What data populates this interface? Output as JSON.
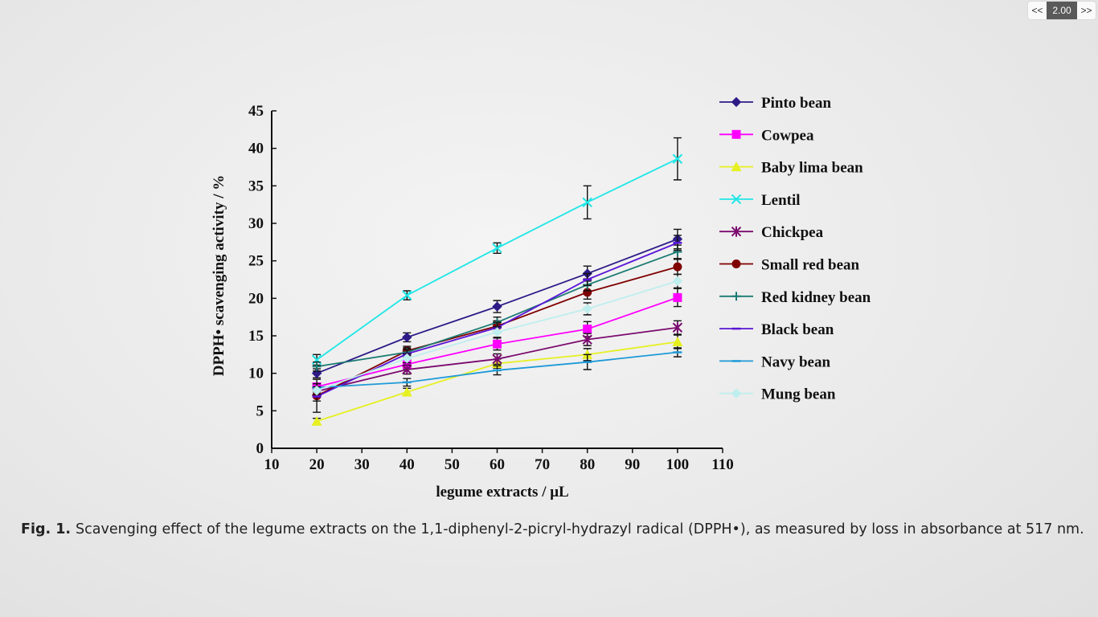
{
  "player": {
    "prev_label": "<<",
    "speed": "2.00",
    "next_label": ">>"
  },
  "caption": {
    "label": "Fig. 1.",
    "text": "Scavenging effect of the legume extracts on the 1,1-diphenyl-2-picryl-hydrazyl radical (DPPH•), as measured by loss in absorbance at 517 nm."
  },
  "chart_data": {
    "type": "line",
    "xlabel": "legume extracts / μL",
    "ylabel": "DPPH• scavenging activity / %",
    "xlim": [
      10,
      110
    ],
    "ylim": [
      0,
      45
    ],
    "xticks": [
      10,
      20,
      30,
      40,
      50,
      60,
      70,
      80,
      90,
      100,
      110
    ],
    "yticks": [
      0,
      5,
      10,
      15,
      20,
      25,
      30,
      35,
      40,
      45
    ],
    "grid": false,
    "legend_position": "right",
    "x": [
      20,
      40,
      60,
      80,
      100
    ],
    "series": [
      {
        "name": "Pinto bean",
        "color": "#2e1a87",
        "marker": "diamond",
        "values": [
          10.0,
          14.8,
          18.9,
          23.3,
          27.9
        ],
        "errors": [
          0.6,
          0.6,
          0.8,
          1.0,
          1.3
        ]
      },
      {
        "name": "Cowpea",
        "color": "#ff00ff",
        "marker": "square",
        "values": [
          8.2,
          11.2,
          13.9,
          15.9,
          20.1
        ],
        "errors": [
          0.5,
          0.6,
          0.8,
          1.0,
          1.2
        ]
      },
      {
        "name": "Baby lima bean",
        "color": "#e6f020",
        "marker": "triangle",
        "values": [
          3.6,
          7.5,
          11.3,
          12.5,
          14.2
        ],
        "errors": [
          0.4,
          0.5,
          0.6,
          0.8,
          0.9
        ]
      },
      {
        "name": "Lentil",
        "color": "#1ee6e6",
        "marker": "x",
        "values": [
          11.8,
          20.4,
          26.7,
          32.8,
          38.6
        ],
        "errors": [
          0.7,
          0.6,
          0.7,
          2.2,
          2.8
        ]
      },
      {
        "name": "Chickpea",
        "color": "#7a0a6e",
        "marker": "star",
        "values": [
          7.6,
          10.5,
          11.9,
          14.5,
          16.1
        ],
        "errors": [
          0.5,
          0.6,
          0.7,
          0.8,
          0.9
        ]
      },
      {
        "name": "Small red bean",
        "color": "#800000",
        "marker": "circle",
        "values": [
          7.0,
          13.0,
          16.3,
          20.8,
          24.2
        ],
        "errors": [
          2.2,
          0.6,
          0.7,
          0.9,
          1.0
        ]
      },
      {
        "name": "Red kidney bean",
        "color": "#1a7a72",
        "marker": "plus",
        "values": [
          10.9,
          12.8,
          16.8,
          21.8,
          26.2
        ],
        "errors": [
          0.6,
          0.6,
          0.7,
          0.8,
          0.9
        ]
      },
      {
        "name": "Black bean",
        "color": "#5a14d6",
        "marker": "dash",
        "values": [
          6.9,
          12.6,
          16.1,
          22.5,
          27.4
        ],
        "errors": [
          0.6,
          0.6,
          0.7,
          0.8,
          1.0
        ]
      },
      {
        "name": "Navy bean",
        "color": "#1e9ad8",
        "marker": "dash",
        "values": [
          8.1,
          8.8,
          10.4,
          11.5,
          12.8
        ],
        "errors": [
          0.5,
          0.5,
          0.6,
          1.0,
          0.6
        ]
      },
      {
        "name": "Mung bean",
        "color": "#bfeeee",
        "marker": "diamond",
        "values": [
          7.7,
          12.0,
          15.5,
          18.6,
          22.3
        ],
        "errors": [
          0.5,
          0.6,
          0.7,
          0.8,
          0.9
        ]
      }
    ]
  }
}
